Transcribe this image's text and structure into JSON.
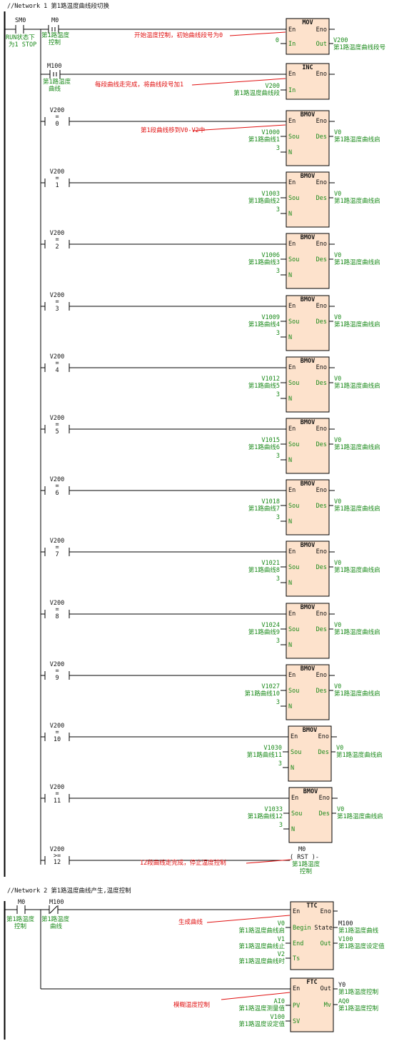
{
  "networks": [
    {
      "title": "//Network 1   第1路温度曲线段切换",
      "header": {
        "sm0": {
          "addr": "SM0",
          "comment_lines": [
            "RUN状态下",
            "为1 STOP"
          ]
        },
        "m0": {
          "addr": "M0",
          "comment_lines": [
            "第1路温度",
            "控制"
          ]
        },
        "mov": {
          "name": "MOV",
          "en": "En",
          "eno": "Eno",
          "in": "In",
          "out": "Out",
          "in_value": "0",
          "out_addr": "V200",
          "out_comment": "第1路温度曲线段号",
          "annotation": "开始温度控制，初始曲线段号为0"
        },
        "m100": {
          "addr": "M100",
          "comment_lines": [
            "第1路温度",
            "曲线"
          ]
        },
        "inc": {
          "name": "INC",
          "en": "En",
          "eno": "Eno",
          "in": "In",
          "in_addr": "V200",
          "in_comment": "第1路温度曲线段",
          "annotation": "每段曲线走完成，将曲线段号加1"
        }
      },
      "bmov_rungs": [
        {
          "cmp_addr": "V200",
          "op": "=",
          "cmp_value": "0",
          "sou_addr": "V1000",
          "sou_comment": "第1路曲线1",
          "n_value": "3",
          "des_addr": "V0",
          "des_comment": "第1路温度曲线启",
          "annotation": "第1段曲线移到V0-V2中"
        },
        {
          "cmp_addr": "V200",
          "op": "=",
          "cmp_value": "1",
          "sou_addr": "V1003",
          "sou_comment": "第1路曲线2",
          "n_value": "3",
          "des_addr": "V0",
          "des_comment": "第1路温度曲线启",
          "annotation": ""
        },
        {
          "cmp_addr": "V200",
          "op": "=",
          "cmp_value": "2",
          "sou_addr": "V1006",
          "sou_comment": "第1路曲线3",
          "n_value": "3",
          "des_addr": "V0",
          "des_comment": "第1路温度曲线启",
          "annotation": ""
        },
        {
          "cmp_addr": "V200",
          "op": "=",
          "cmp_value": "3",
          "sou_addr": "V1009",
          "sou_comment": "第1路曲线4",
          "n_value": "3",
          "des_addr": "V0",
          "des_comment": "第1路温度曲线启",
          "annotation": ""
        },
        {
          "cmp_addr": "V200",
          "op": "=",
          "cmp_value": "4",
          "sou_addr": "V1012",
          "sou_comment": "第1路曲线5",
          "n_value": "3",
          "des_addr": "V0",
          "des_comment": "第1路温度曲线启",
          "annotation": ""
        },
        {
          "cmp_addr": "V200",
          "op": "=",
          "cmp_value": "5",
          "sou_addr": "V1015",
          "sou_comment": "第1路曲线6",
          "n_value": "3",
          "des_addr": "V0",
          "des_comment": "第1路温度曲线启",
          "annotation": ""
        },
        {
          "cmp_addr": "V200",
          "op": "=",
          "cmp_value": "6",
          "sou_addr": "V1018",
          "sou_comment": "第1路曲线7",
          "n_value": "3",
          "des_addr": "V0",
          "des_comment": "第1路温度曲线启",
          "annotation": ""
        },
        {
          "cmp_addr": "V200",
          "op": "=",
          "cmp_value": "7",
          "sou_addr": "V1021",
          "sou_comment": "第1路曲线8",
          "n_value": "3",
          "des_addr": "V0",
          "des_comment": "第1路温度曲线启",
          "annotation": ""
        },
        {
          "cmp_addr": "V200",
          "op": "=",
          "cmp_value": "8",
          "sou_addr": "V1024",
          "sou_comment": "第1路曲线9",
          "n_value": "3",
          "des_addr": "V0",
          "des_comment": "第1路温度曲线启",
          "annotation": ""
        },
        {
          "cmp_addr": "V200",
          "op": "=",
          "cmp_value": "9",
          "sou_addr": "V1027",
          "sou_comment": "第1路曲线10",
          "n_value": "3",
          "des_addr": "V0",
          "des_comment": "第1路温度曲线启",
          "annotation": ""
        },
        {
          "cmp_addr": "V200",
          "op": "=",
          "cmp_value": "10",
          "sou_addr": "V1030",
          "sou_comment": "第1路曲线11",
          "n_value": "3",
          "des_addr": "V0",
          "des_comment": "第1路温度曲线启",
          "annotation": ""
        },
        {
          "cmp_addr": "V200",
          "op": "=",
          "cmp_value": "11",
          "sou_addr": "V1033",
          "sou_comment": "第1路曲线12",
          "n_value": "3",
          "des_addr": "V0",
          "des_comment": "第1路温度曲线启",
          "annotation": ""
        }
      ],
      "bmov_labels": {
        "name": "BMOV",
        "en": "En",
        "eno": "Eno",
        "sou": "Sou",
        "des": "Des",
        "n": "N"
      },
      "last_rung": {
        "cmp_addr": "V200",
        "op": ">=",
        "cmp_value": "12",
        "coil_addr": "M0",
        "coil_text": "( RST )-",
        "coil_comment_lines": [
          "第1路温度",
          "控制"
        ],
        "annotation": "12段曲线走完成，停止温度控制"
      }
    },
    {
      "title": "//Network 2   第1路温度曲线产生,温度控制",
      "m0": {
        "addr": "M0",
        "comment_lines": [
          "第1路温度",
          "控制"
        ]
      },
      "m100": {
        "addr": "M100",
        "comment_lines": [
          "第1路温度",
          "曲线"
        ]
      },
      "ttc": {
        "name": "TTC",
        "en": "En",
        "eno": "Eno",
        "begin": "Begin",
        "end": "End",
        "ts": "Ts",
        "state": "State",
        "out": "Out",
        "begin_addr": "V0",
        "begin_comment": "第1路温度曲线启",
        "end_addr": "V1",
        "end_comment": "第1路温度曲线止",
        "ts_addr": "V2",
        "ts_comment": "第1路温度曲线时",
        "state_addr": "M100",
        "state_comment": "第1路温度曲线",
        "out_addr": "V100",
        "out_comment": "第1路温度设定值",
        "annotation": "生成曲线"
      },
      "ftc": {
        "name": "FTC",
        "en": "En",
        "out": "Out",
        "pv": "PV",
        "sv": "SV",
        "mv": "Mv",
        "pv_addr": "AI0",
        "pv_comment": "第1路温度测量值",
        "sv_addr": "V100",
        "sv_comment": "第1路温度设定值",
        "out_addr": "Y0",
        "out_comment": "第1路温度控制",
        "mv_addr": "AQ0",
        "mv_comment": "第1路温度控制",
        "annotation": "模糊温度控制"
      }
    }
  ],
  "colors": {
    "block_fill": "#fde2cc",
    "wire": "#000000",
    "address_text": "#1a8a1a",
    "annotation_text": "#e01010"
  }
}
